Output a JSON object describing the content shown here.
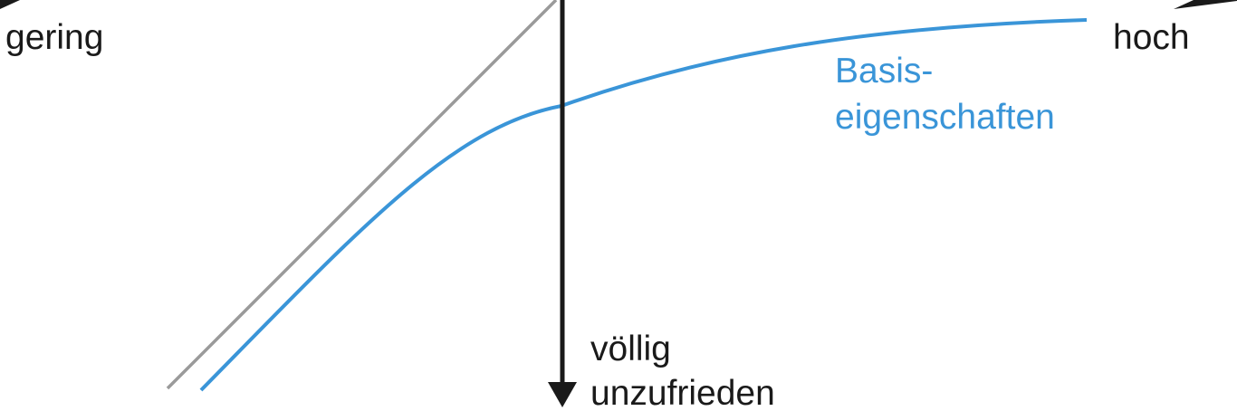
{
  "axis": {
    "left_label": "gering",
    "right_label": "hoch",
    "bottom_label_line1": "völlig",
    "bottom_label_line2": "unzufrieden"
  },
  "curve": {
    "label_line1": "Basis-",
    "label_line2": "eigenschaften",
    "color": "#3a95d8"
  },
  "colors": {
    "axis": "#1a1a1a",
    "reference_line": "#9a9a9a"
  }
}
